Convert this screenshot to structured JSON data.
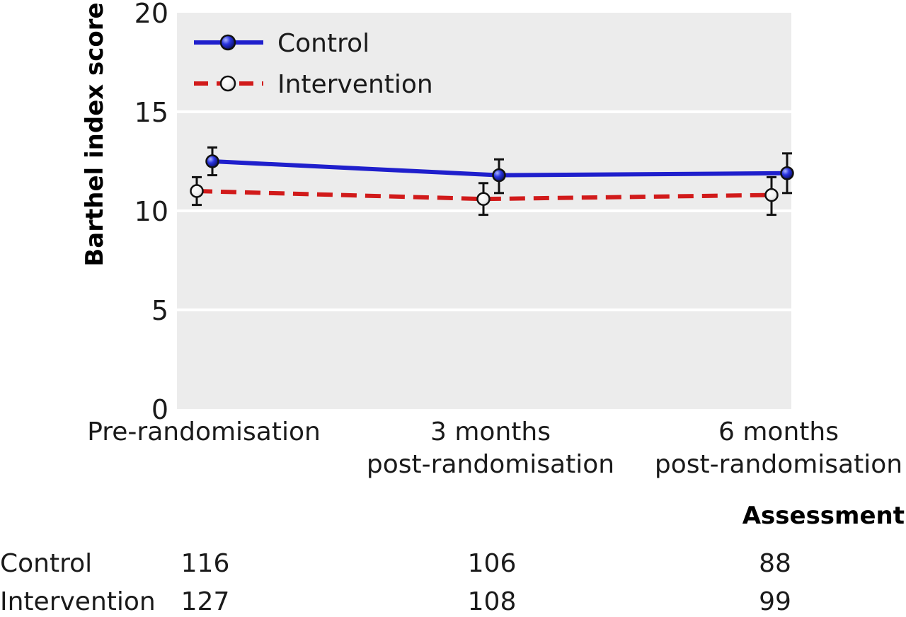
{
  "chart_data": {
    "type": "line",
    "title": "",
    "xlabel": "Assessment",
    "ylabel": "Barthel index score",
    "ylim": [
      0,
      20
    ],
    "yticks": [
      "0",
      "5",
      "10",
      "15",
      "20"
    ],
    "grid": true,
    "legend_position": "top-left",
    "categories": [
      [
        "Pre-randomisation"
      ],
      [
        "3 months",
        "post-randomisation"
      ],
      [
        "6 months",
        "post-randomisation"
      ]
    ],
    "series": [
      {
        "name": "Control",
        "color": "#1f1fcc",
        "line_style": "solid",
        "marker": "filled-blue-circle",
        "values": [
          12.5,
          11.8,
          11.9
        ],
        "error_low": [
          11.8,
          10.9,
          10.9
        ],
        "error_high": [
          13.2,
          12.6,
          12.9
        ]
      },
      {
        "name": "Intervention",
        "color": "#d11a1a",
        "line_style": "dashed",
        "marker": "open-white-circle",
        "values": [
          11.0,
          10.6,
          10.8
        ],
        "error_low": [
          10.3,
          9.8,
          9.8
        ],
        "error_high": [
          11.7,
          11.4,
          11.7
        ]
      }
    ],
    "numbers_at_risk": {
      "rows": [
        {
          "label": "Control",
          "values": [
            "116",
            "106",
            "88"
          ]
        },
        {
          "label": "Intervention",
          "values": [
            "127",
            "108",
            "99"
          ]
        }
      ]
    }
  }
}
